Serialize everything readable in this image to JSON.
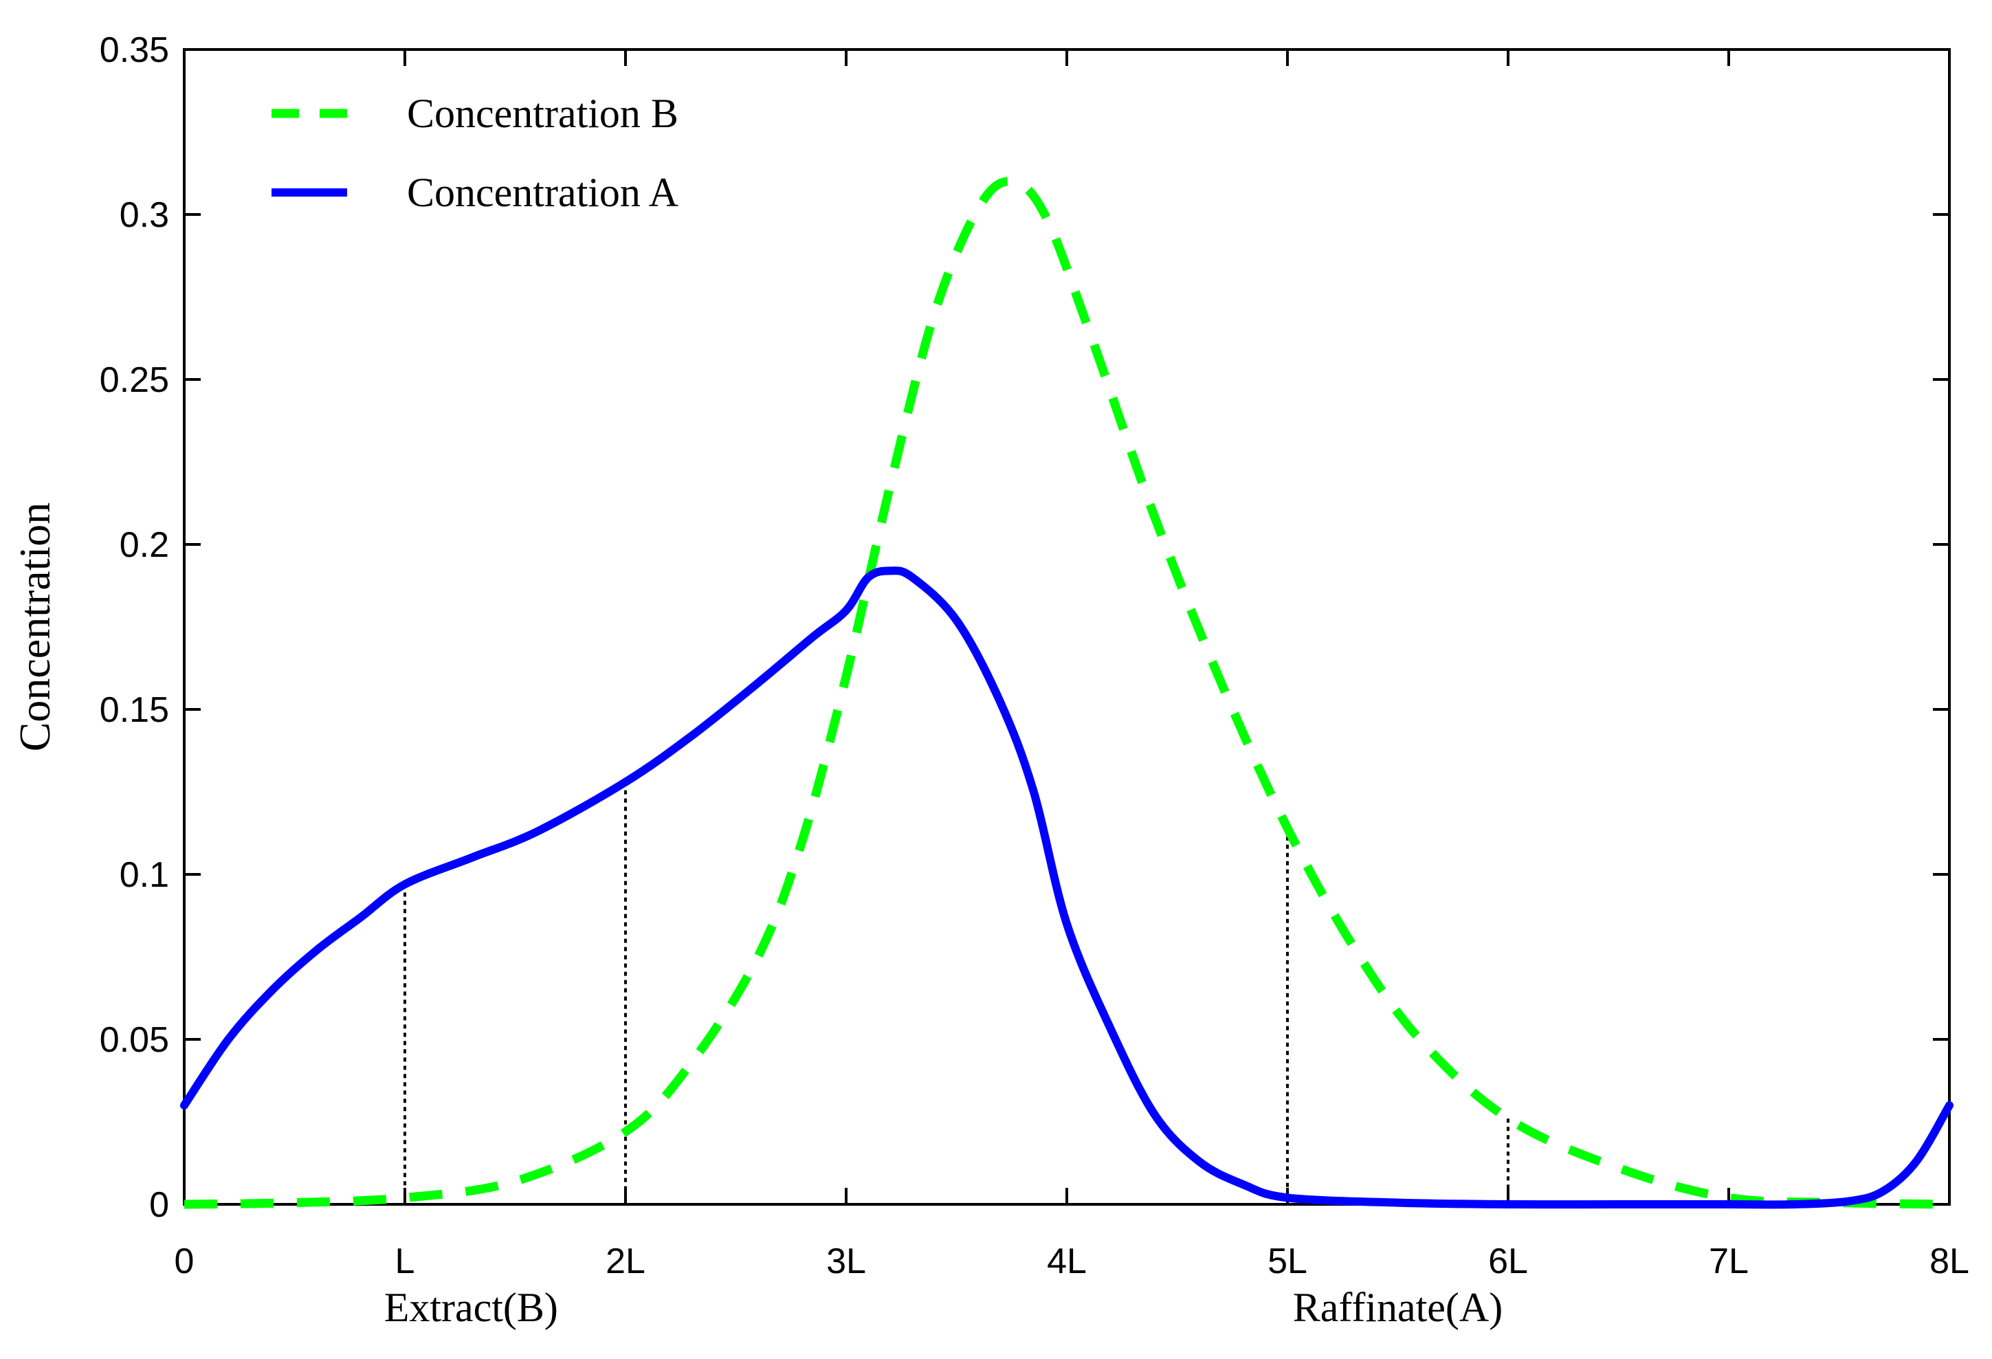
{
  "chart_data": {
    "type": "line",
    "title": "",
    "xlabel": "",
    "ylabel": "Concentration",
    "xlim": [
      0,
      8
    ],
    "ylim": [
      0,
      0.35
    ],
    "x_ticks": [
      0,
      1,
      2,
      3,
      4,
      5,
      6,
      7,
      8
    ],
    "x_tick_labels": [
      "0",
      "L",
      "2L",
      "3L",
      "4L",
      "5L",
      "6L",
      "7L",
      "8L"
    ],
    "y_ticks": [
      0,
      0.05,
      0.1,
      0.15,
      0.2,
      0.25,
      0.3,
      0.35
    ],
    "y_tick_labels": [
      "0",
      "0.05",
      "0.1",
      "0.15",
      "0.2",
      "0.25",
      "0.3",
      "0.35"
    ],
    "legend_placement": "top-left",
    "grid": false,
    "series": [
      {
        "name": "Concentration B",
        "color": "#00ff00",
        "style": "dashed",
        "x": [
          0,
          0.5,
          1.0,
          1.5,
          2.0,
          2.3,
          2.6,
          2.8,
          3.0,
          3.2,
          3.4,
          3.6,
          3.75,
          3.9,
          4.1,
          4.4,
          4.7,
          5.0,
          5.3,
          5.6,
          6.0,
          6.5,
          7.0,
          7.5,
          8.0
        ],
        "values": [
          0.0,
          0.0005,
          0.002,
          0.007,
          0.022,
          0.043,
          0.075,
          0.11,
          0.16,
          0.218,
          0.27,
          0.302,
          0.31,
          0.3,
          0.265,
          0.208,
          0.158,
          0.114,
          0.078,
          0.05,
          0.026,
          0.011,
          0.002,
          0.0005,
          0.0
        ]
      },
      {
        "name": "Concentration A",
        "color": "#0000ff",
        "style": "solid",
        "x": [
          0,
          0.2,
          0.4,
          0.6,
          0.8,
          1.0,
          1.3,
          1.6,
          2.0,
          2.3,
          2.6,
          2.85,
          3.0,
          3.1,
          3.2,
          3.3,
          3.5,
          3.7,
          3.85,
          4.0,
          4.2,
          4.4,
          4.6,
          4.8,
          5.0,
          5.5,
          6.0,
          6.5,
          7.0,
          7.3,
          7.55,
          7.7,
          7.85,
          8.0
        ],
        "values": [
          0.03,
          0.05,
          0.065,
          0.077,
          0.087,
          0.097,
          0.105,
          0.113,
          0.128,
          0.142,
          0.158,
          0.172,
          0.18,
          0.19,
          0.192,
          0.19,
          0.177,
          0.152,
          0.125,
          0.085,
          0.053,
          0.027,
          0.013,
          0.006,
          0.002,
          0.0005,
          0.0,
          0.0,
          0.0,
          0.0,
          0.001,
          0.004,
          0.013,
          0.03
        ]
      }
    ],
    "column_markers": [
      {
        "x": 1,
        "y": 0.097
      },
      {
        "x": 2,
        "y": 0.128
      },
      {
        "x": 5,
        "y": 0.114
      },
      {
        "x": 6,
        "y": 0.026
      }
    ],
    "annotations": [
      {
        "text": "Extract(B)",
        "x": 1.3
      },
      {
        "text": "Raffinate(A)",
        "x": 5.5
      }
    ]
  }
}
